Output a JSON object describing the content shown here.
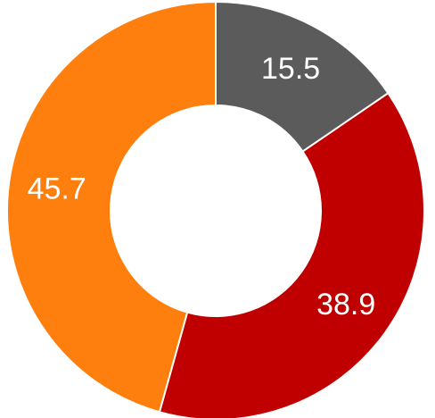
{
  "chart_data": {
    "type": "pie",
    "variant": "donut",
    "slices": [
      {
        "label": "15.5",
        "value": 15.5,
        "color": "#5b5b5b"
      },
      {
        "label": "38.9",
        "value": 38.9,
        "color": "#c00000"
      },
      {
        "label": "45.7",
        "value": 45.7,
        "color": "#ff7f0e"
      }
    ],
    "legend": "none",
    "start": "top",
    "direction": "clockwise"
  }
}
